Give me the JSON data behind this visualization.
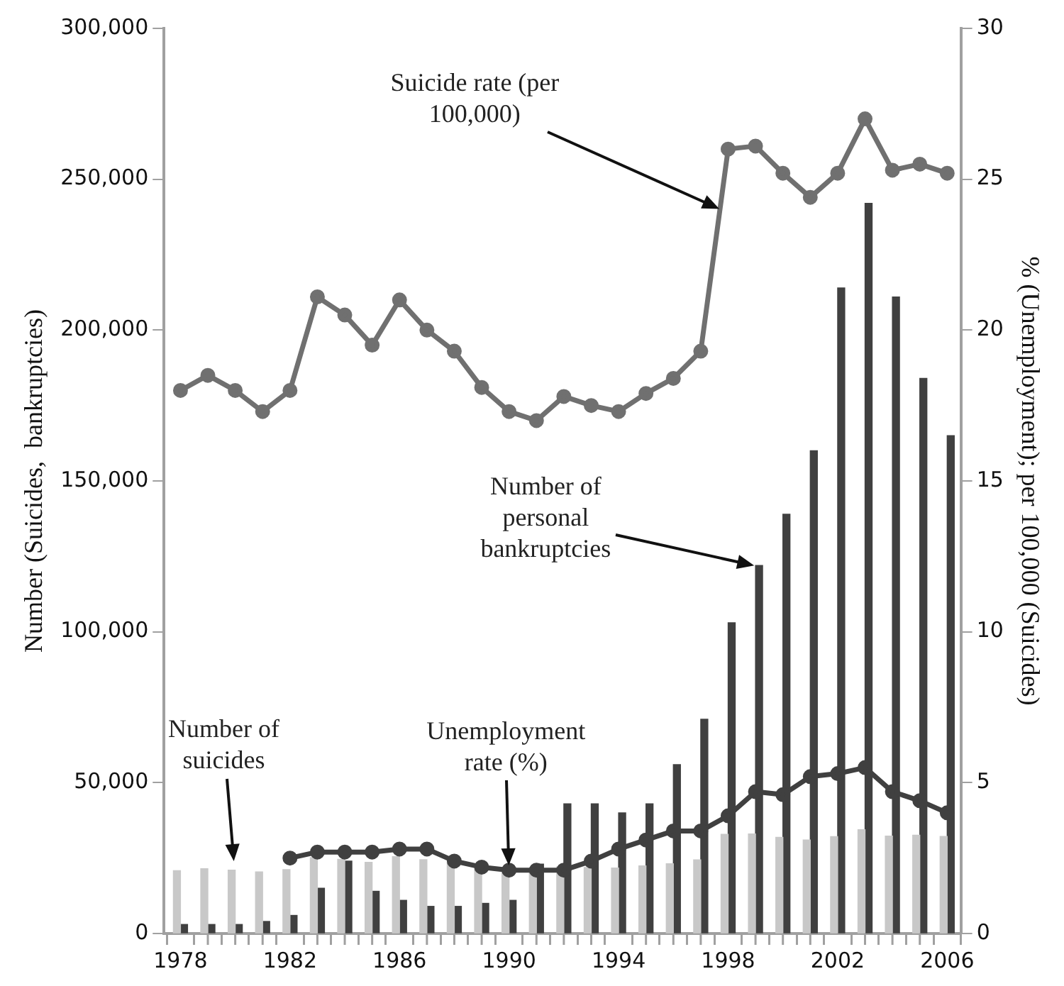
{
  "chart_data": {
    "type": "bar",
    "xlabel": null,
    "ylabel": "Number (Suicides,  bankruptcies)",
    "y2label": "% (Unemployment); per 100,000 (Suicides)",
    "x": [
      1978,
      1979,
      1980,
      1981,
      1982,
      1983,
      1984,
      1985,
      1986,
      1987,
      1988,
      1989,
      1990,
      1991,
      1992,
      1993,
      1994,
      1995,
      1996,
      1997,
      1998,
      1999,
      2000,
      2001,
      2002,
      2003,
      2004,
      2005,
      2006
    ],
    "xlim": [
      1977.4,
      2006.5
    ],
    "xticks": [
      1978,
      {
        "value": 1979,
        "label": null
      },
      {
        "value": 1980,
        "label": null
      },
      {
        "value": 1981,
        "label": null
      },
      1982,
      {
        "value": 1983,
        "label": null
      },
      {
        "value": 1984,
        "label": null
      },
      {
        "value": 1985,
        "label": null
      },
      1986,
      {
        "value": 1987,
        "label": null
      },
      {
        "value": 1988,
        "label": null
      },
      {
        "value": 1989,
        "label": null
      },
      1990,
      {
        "value": 1991,
        "label": null
      },
      {
        "value": 1992,
        "label": null
      },
      {
        "value": 1993,
        "label": null
      },
      1994,
      {
        "value": 1995,
        "label": null
      },
      {
        "value": 1996,
        "label": null
      },
      {
        "value": 1997,
        "label": null
      },
      1998,
      {
        "value": 1999,
        "label": null
      },
      {
        "value": 2000,
        "label": null
      },
      {
        "value": 2001,
        "label": null
      },
      2002,
      {
        "value": 2003,
        "label": null
      },
      {
        "value": 2004,
        "label": null
      },
      {
        "value": 2005,
        "label": null
      },
      2006
    ],
    "ylim": [
      0,
      300000
    ],
    "yticks": [
      0,
      {
        "value": 50000,
        "label": "50,000"
      },
      {
        "value": 100000,
        "label": "100,000"
      },
      {
        "value": 150000,
        "label": "150,000"
      },
      {
        "value": 200000,
        "label": "200,000"
      },
      {
        "value": 250000,
        "label": "250,000"
      },
      {
        "value": 300000,
        "label": "300,000"
      }
    ],
    "y2lim": [
      0,
      30
    ],
    "y2ticks": [
      0,
      5,
      10,
      15,
      20,
      25,
      30
    ],
    "grid": false,
    "legend": false,
    "series": [
      {
        "color": "#c8c8c8",
        "values": [
          20800,
          21500,
          21000,
          20400,
          21200,
          25200,
          24600,
          23600,
          25500,
          24500,
          23700,
          22400,
          21300,
          21100,
          22100,
          21900,
          21700,
          22400,
          23100,
          24400,
          32900,
          33000,
          31900,
          31000,
          32100,
          34400,
          32300,
          32600,
          32200
        ]
      },
      {
        "color": "#404040",
        "values": [
          3000,
          3000,
          3000,
          4000,
          6000,
          15000,
          24000,
          14000,
          11000,
          9000,
          9000,
          10000,
          11000,
          23000,
          43000,
          43000,
          40000,
          43000,
          56000,
          71000,
          103000,
          122000,
          139000,
          160000,
          214000,
          242000,
          211000,
          184000,
          165000
        ]
      },
      {
        "type": "line",
        "axis": "y2",
        "color": "#707070",
        "marker": "circle",
        "values": [
          18.0,
          18.5,
          18.0,
          17.3,
          18.0,
          21.1,
          20.5,
          19.5,
          21.0,
          20.0,
          19.3,
          18.1,
          17.3,
          17.0,
          17.8,
          17.5,
          17.3,
          17.9,
          18.4,
          19.3,
          26.0,
          26.1,
          25.2,
          24.4,
          25.2,
          27.0,
          25.3,
          25.5,
          25.2
        ]
      },
      {
        "type": "line",
        "axis": "y2",
        "color": "#404040",
        "marker": "circle",
        "values": [
          null,
          null,
          null,
          null,
          2.5,
          2.7,
          2.7,
          2.7,
          2.8,
          2.8,
          2.4,
          2.2,
          2.1,
          2.1,
          2.1,
          2.4,
          2.8,
          3.1,
          3.4,
          3.4,
          3.9,
          4.7,
          4.6,
          5.2,
          5.3,
          5.5,
          4.7,
          4.4,
          4.0
        ]
      }
    ],
    "annotations": [
      "Suicide rate (per 100,000)",
      "Number of personal bankruptcies",
      "Unemployment rate (%)",
      "Number of suicides"
    ]
  }
}
